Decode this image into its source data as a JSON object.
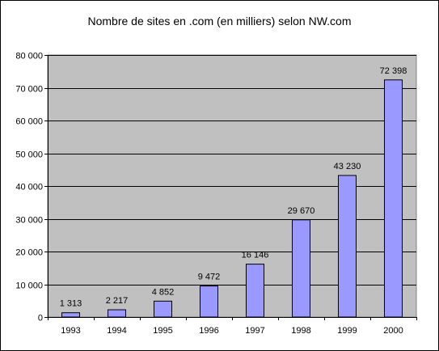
{
  "chart_data": {
    "type": "bar",
    "title": "Nombre de sites en .com (en milliers) selon NW.com",
    "xlabel": "",
    "ylabel": "",
    "categories": [
      "1993",
      "1994",
      "1995",
      "1996",
      "1997",
      "1998",
      "1999",
      "2000"
    ],
    "values": [
      1313,
      2217,
      4852,
      9472,
      16146,
      29670,
      43230,
      72398
    ],
    "value_labels": [
      "1 313",
      "2 217",
      "4 852",
      "9 472",
      "16 146",
      "29 670",
      "43 230",
      "72 398"
    ],
    "ylim": [
      0,
      80000
    ],
    "y_ticks": [
      0,
      10000,
      20000,
      30000,
      40000,
      50000,
      60000,
      70000,
      80000
    ],
    "y_tick_labels": [
      "0",
      "10 000",
      "20 000",
      "30 000",
      "40 000",
      "50 000",
      "60 000",
      "70 000",
      "80 000"
    ],
    "grid": true,
    "legend": "none",
    "colors": {
      "plot_background": "#c0c0c0",
      "bar_fill": "#9999ff",
      "bar_stroke": "#000000",
      "gridline": "#000000",
      "page_background": "#ffffff"
    }
  }
}
